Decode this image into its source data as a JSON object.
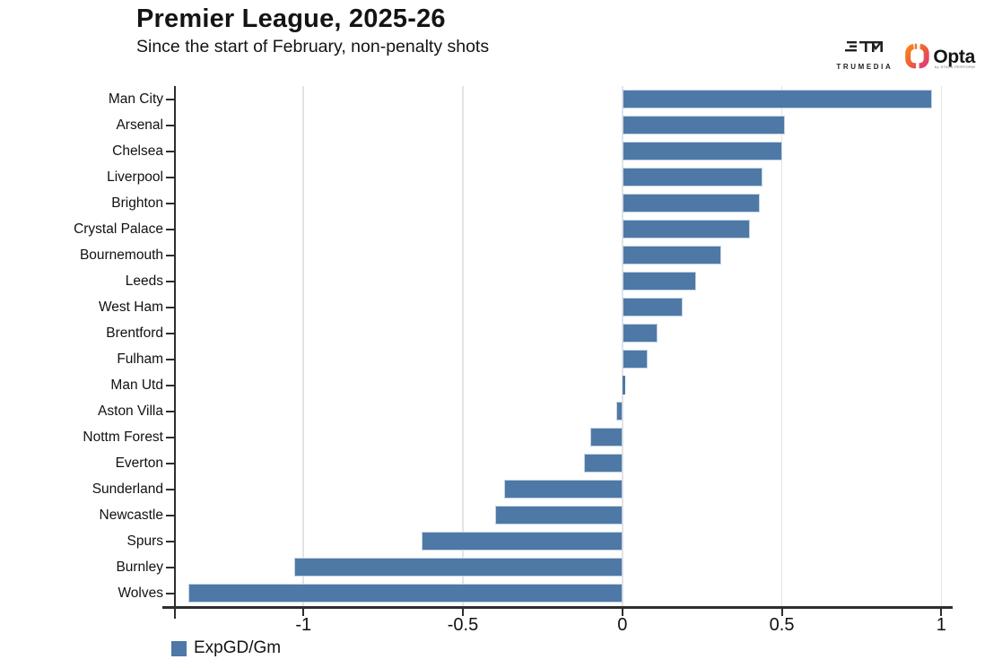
{
  "header": {
    "title": "Premier League, 2025-26",
    "subtitle": "Since the start of February, non-penalty shots"
  },
  "branding": {
    "trumedia_label": "TRUMEDIA",
    "opta_label": "Opta",
    "opta_sub_label": "by STATS PERFORM"
  },
  "chart_data": {
    "type": "bar",
    "orientation": "horizontal",
    "title": "Premier League, 2025-26",
    "subtitle": "Since the start of February, non-penalty shots",
    "series_name": "ExpGD/Gm",
    "legend_label": "ExpGD/Gm",
    "legend_position": "bottom-left",
    "categories": [
      "Man City",
      "Arsenal",
      "Chelsea",
      "Liverpool",
      "Brighton",
      "Crystal Palace",
      "Bournemouth",
      "Leeds",
      "West Ham",
      "Brentford",
      "Fulham",
      "Man Utd",
      "Aston Villa",
      "Nottm Forest",
      "Everton",
      "Sunderland",
      "Newcastle",
      "Spurs",
      "Burnley",
      "Wolves"
    ],
    "values": [
      0.97,
      0.51,
      0.5,
      0.44,
      0.43,
      0.4,
      0.31,
      0.23,
      0.19,
      0.11,
      0.08,
      0.01,
      -0.02,
      -0.1,
      -0.12,
      -0.37,
      -0.4,
      -0.63,
      -1.03,
      -1.36
    ],
    "xlabel": "",
    "ylabel": "",
    "x_ticks": [
      -1,
      -0.5,
      0,
      0.5,
      1
    ],
    "x_tick_labels": [
      "-1",
      "-0.5",
      "0",
      "0.5",
      "1"
    ],
    "xlim": [
      -1.4,
      1.03
    ],
    "grid": true,
    "bar_color": "#4e79a7",
    "bar_border_color": "#c5d3e3",
    "gridline_color": "#e4e4e6",
    "axis_color": "#2e2e2e"
  }
}
